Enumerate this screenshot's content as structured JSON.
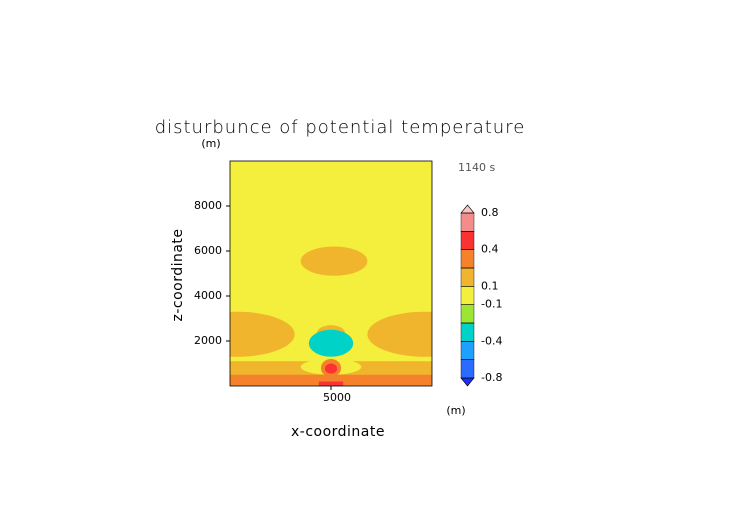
{
  "chart_data": {
    "type": "contour",
    "title": "disturbunce of potential temperature",
    "x_label": "x-coordinate",
    "y_label": "z-coordinate",
    "x_unit": "(m)",
    "y_unit": "(m)",
    "annotation": "1140 s",
    "xlim": [
      0,
      10000
    ],
    "ylim": [
      0,
      10000
    ],
    "xticks": [
      5000
    ],
    "yticks": [
      2000,
      4000,
      6000,
      8000
    ],
    "levels": [
      -0.8,
      -0.6,
      -0.4,
      -0.2,
      -0.1,
      0.1,
      0.2,
      0.4,
      0.6,
      0.8
    ],
    "level_labels": [
      "-0.8",
      null,
      "-0.4",
      null,
      "-0.1",
      "0.1",
      null,
      "0.4",
      null,
      "0.8"
    ],
    "colors": [
      "#1e2cff",
      "#2a6cff",
      "#1ea0ff",
      "#00d2c8",
      "#9ae632",
      "#f3ef3c",
      "#f0b42d",
      "#f5822a",
      "#fa3232",
      "#f58c8c",
      "#ffc3c3"
    ],
    "background_value": 0,
    "regions": [
      {
        "value": 0.15,
        "shape": "ellipse",
        "x": [
          3500,
          6800
        ],
        "z": [
          4900,
          6200
        ]
      },
      {
        "value": 0.15,
        "shape": "ellipse",
        "x": [
          -2500,
          3200
        ],
        "z": [
          1300,
          3300
        ]
      },
      {
        "value": 0.15,
        "shape": "ellipse",
        "x": [
          6800,
          12500
        ],
        "z": [
          1300,
          3300
        ]
      },
      {
        "value": 0.15,
        "shape": "rect",
        "x": [
          0,
          10000
        ],
        "z": [
          0,
          1100
        ]
      },
      {
        "value": 0.3,
        "shape": "rect",
        "x": [
          0,
          10000
        ],
        "z": [
          0,
          500
        ]
      },
      {
        "value": 0.15,
        "shape": "ellipse",
        "x": [
          4300,
          5700
        ],
        "z": [
          2000,
          2700
        ]
      },
      {
        "value": -0.3,
        "shape": "ellipse",
        "x": [
          3900,
          6100
        ],
        "z": [
          1300,
          2500
        ]
      },
      {
        "value": -0.1,
        "shape": "ellipse",
        "x": [
          3500,
          6500
        ],
        "z": [
          500,
          1200
        ]
      },
      {
        "value": 0.05,
        "shape": "ellipse",
        "x": [
          4300,
          5700
        ],
        "z": [
          500,
          1300
        ]
      },
      {
        "value": 0.3,
        "shape": "ellipse",
        "x": [
          4500,
          5500
        ],
        "z": [
          400,
          1200
        ]
      },
      {
        "value": 0.5,
        "shape": "ellipse",
        "x": [
          4700,
          5300
        ],
        "z": [
          550,
          1000
        ]
      },
      {
        "value": 0.5,
        "shape": "rect",
        "x": [
          4400,
          5600
        ],
        "z": [
          0,
          200
        ]
      }
    ]
  }
}
